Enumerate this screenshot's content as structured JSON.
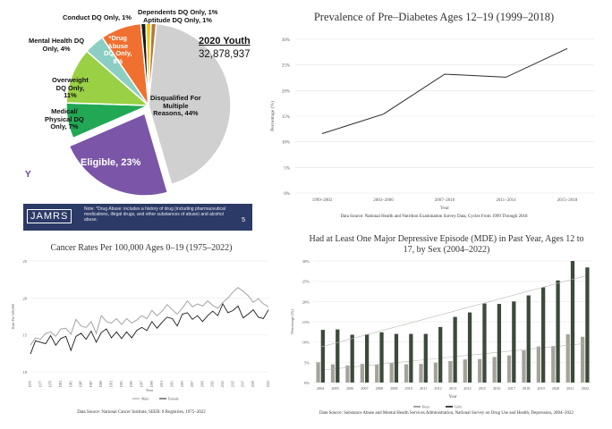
{
  "pie": {
    "title": "2020 Youth",
    "total": "32,878,937",
    "footnote": "Note: *Drug Abuse: includes a history of drug (including pharmaceutical medications, illegal drugs, and other substances of abuse) and alcohol abuse.",
    "logo": "JAMRS",
    "page_number": "5",
    "side_glyph": "Y",
    "labels": {
      "conduct": "Conduct DQ Only, 1%",
      "dependents": "Dependents DQ Only, 1%",
      "aptitude": "Aptitude DQ Only, 1%",
      "mental": "Mental Health DQ\nOnly, 4%",
      "drug": "*Drug\nAbuse\nDQ Only,\n8%",
      "overweight": "Overweight\nDQ Only,\n11%",
      "medical": "Medical/\nPhysical DQ\nOnly, 7%",
      "eligible": "Eligible, 23%",
      "disqualified": "Disqualified For\nMultiple\nReasons, 44%"
    },
    "colors": {
      "disqualified": "#d0d0d0",
      "eligible": "#7a55a8",
      "medical": "#22a855",
      "overweight": "#9ad044",
      "mental": "#8ccfc2",
      "drug": "#f07030",
      "conduct": "#1a1a1a",
      "dependents": "#f2c418",
      "aptitude": "#b07a3a"
    }
  },
  "chart_data": [
    {
      "type": "pie",
      "title": "2020 Youth",
      "categories": [
        "Disqualified For Multiple Reasons",
        "Eligible",
        "Medical/Physical DQ Only",
        "Overweight DQ Only",
        "Mental Health DQ Only",
        "*Drug Abuse DQ Only",
        "Conduct DQ Only",
        "Dependents DQ Only",
        "Aptitude DQ Only"
      ],
      "values": [
        44,
        23,
        7,
        11,
        4,
        8,
        1,
        1,
        1
      ]
    },
    {
      "type": "line",
      "title": "Prevalence of Pre–Diabetes Ages 12–19 (1999–2018)",
      "xlabel": "Year",
      "ylabel": "Percentage (%)",
      "categories": [
        "1999–2002",
        "2003–2006",
        "2007–2010",
        "2011–2014",
        "2015–2018"
      ],
      "values": [
        11.6,
        15.4,
        23.2,
        22.6,
        28.2
      ],
      "ylim": [
        0,
        30
      ],
      "yticks": [
        "0%",
        "5%",
        "10%",
        "15%",
        "20%",
        "25%",
        "30%"
      ],
      "source": "Data Source: National Health and Nutrition Examination Survey Data, Cycles From 1999 Through 2018"
    },
    {
      "type": "line",
      "title": "Cancer Rates Per 100,000 Ages 0–19 (1975–2022)",
      "xlabel": "Year",
      "ylabel": "Rate Per 100,000",
      "ylim": [
        10,
        25
      ],
      "yticks": [
        "10",
        "15",
        "20",
        "25"
      ],
      "x": [
        1975,
        1976,
        1977,
        1978,
        1979,
        1980,
        1981,
        1982,
        1983,
        1984,
        1985,
        1986,
        1987,
        1988,
        1989,
        1990,
        1991,
        1992,
        1993,
        1994,
        1995,
        1996,
        1997,
        1998,
        1999,
        2000,
        2001,
        2002,
        2003,
        2004,
        2005,
        2006,
        2007,
        2008,
        2009,
        2010,
        2011,
        2012,
        2013,
        2014,
        2015,
        2016,
        2017,
        2018,
        2019,
        2020,
        2021,
        2022
      ],
      "xtick_labels": [
        "1975",
        "1977",
        "1979",
        "1981",
        "1983",
        "1985",
        "1987",
        "1989",
        "1991",
        "1993",
        "1995",
        "1997",
        "1999",
        "2001",
        "2003",
        "2005",
        "2007",
        "2009",
        "2011",
        "2013",
        "2015",
        "2017",
        "2019",
        "2022"
      ],
      "series": [
        {
          "name": "Male",
          "color": "#9a9a9a",
          "values": [
            13.6,
            14.6,
            14.4,
            15.2,
            15.4,
            14.8,
            15.8,
            15.9,
            15.1,
            17.1,
            16.2,
            16.0,
            16.8,
            15.2,
            17.6,
            16.8,
            16.6,
            17.2,
            16.4,
            17.2,
            16.6,
            17.0,
            17.6,
            17.2,
            18.3,
            17.6,
            18.2,
            19.1,
            18.4,
            17.8,
            18.6,
            19.6,
            18.8,
            19.2,
            18.9,
            19.6,
            19.0,
            18.6,
            19.4,
            20.0,
            20.8,
            21.4,
            20.9,
            20.3,
            19.4,
            19.9,
            19.2,
            18.8
          ]
        },
        {
          "name": "Female",
          "color": "#1a1a1a",
          "values": [
            12.4,
            14.2,
            14.0,
            13.8,
            14.9,
            13.6,
            14.5,
            14.8,
            12.9,
            14.8,
            15.2,
            14.4,
            15.5,
            14.0,
            15.3,
            15.8,
            14.6,
            15.4,
            14.5,
            15.4,
            14.6,
            15.6,
            16.0,
            15.6,
            16.8,
            15.9,
            16.7,
            17.4,
            17.2,
            16.2,
            17.8,
            18.0,
            17.1,
            17.6,
            16.8,
            17.6,
            18.2,
            17.6,
            19.2,
            18.0,
            18.3,
            18.9,
            17.3,
            17.8,
            18.4,
            17.4,
            17.2,
            18.4
          ]
        }
      ],
      "source": "Data Source: National Cancer Institute, SEER: 8 Registries, 1975–2022"
    },
    {
      "type": "bar",
      "title": "Had at Least One Major Depressive Episode (MDE) in Past Year, Ages 12 to 17, by Sex (2004–2022)",
      "xlabel": "Year",
      "ylabel": "Percentage (%)",
      "ylim": [
        0,
        30
      ],
      "yticks": [
        "0%",
        "5%",
        "10%",
        "15%",
        "20%",
        "25%",
        "30%"
      ],
      "categories": [
        "2004",
        "2005",
        "2006",
        "2007",
        "2008",
        "2009",
        "2010",
        "2011",
        "2012",
        "2013",
        "2014",
        "2015",
        "2016",
        "2017",
        "2018",
        "2019",
        "2020",
        "2021",
        "2022"
      ],
      "series": [
        {
          "name": "Boys",
          "color": "#a3a39a",
          "values": [
            5.0,
            4.5,
            4.2,
            4.6,
            4.4,
            4.8,
            4.5,
            4.6,
            4.9,
            5.3,
            5.7,
            5.8,
            6.3,
            6.7,
            7.9,
            8.9,
            9.0,
            11.9,
            11.3
          ]
        },
        {
          "name": "Girls",
          "color": "#3b4a3b",
          "values": [
            13.0,
            13.1,
            11.8,
            11.9,
            12.4,
            12.0,
            12.0,
            12.0,
            13.7,
            16.2,
            17.3,
            19.5,
            19.4,
            20.0,
            21.5,
            23.5,
            25.2,
            30.0,
            28.4
          ]
        }
      ],
      "source": "Data Source: Substance Abuse and Mental Health Services Administration, National Survey on Drug Use and Health, Depression, 2004–2022"
    }
  ]
}
